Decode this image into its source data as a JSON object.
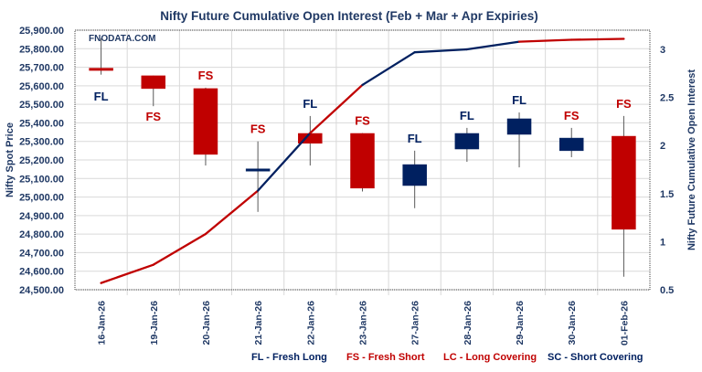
{
  "chart_data": {
    "type": "candlestick+line",
    "title": "Nifty Future Cumulative Open Interest (Feb + Mar + Apr Expiries)",
    "watermark": "FNODATA.COM",
    "ylabel_left": "Nifty Spot Price",
    "ylabel_right": "Nifty Future Cumulative Open Interest",
    "ylim_left": [
      24500,
      25900
    ],
    "ylim_right": [
      0.5,
      3.2
    ],
    "yticks_left": [
      "24,500.00",
      "24,600.00",
      "24,700.00",
      "24,800.00",
      "24,900.00",
      "25,000.00",
      "25,100.00",
      "25,200.00",
      "25,300.00",
      "25,400.00",
      "25,500.00",
      "25,600.00",
      "25,700.00",
      "25,800.00",
      "25,900.00"
    ],
    "yticks_right": [
      "0.5",
      "1",
      "1.5",
      "2",
      "2.5",
      "3"
    ],
    "grid": true,
    "categories": [
      "16-Jan-26",
      "19-Jan-26",
      "20-Jan-26",
      "21-Jan-26",
      "22-Jan-26",
      "23-Jan-26",
      "27-Jan-26",
      "28-Jan-26",
      "29-Jan-26",
      "30-Jan-26",
      "01-Feb-26"
    ],
    "candles": [
      {
        "open": 25695,
        "high": 25855,
        "low": 25660,
        "close": 25693
      },
      {
        "open": 25654,
        "high": 25655,
        "low": 25490,
        "close": 25585
      },
      {
        "open": 25585,
        "high": 25590,
        "low": 25170,
        "close": 25230
      },
      {
        "open": 25148,
        "high": 25300,
        "low": 24920,
        "close": 25152
      },
      {
        "open": 25343,
        "high": 25437,
        "low": 25170,
        "close": 25290
      },
      {
        "open": 25343,
        "high": 25345,
        "low": 25030,
        "close": 25048
      },
      {
        "open": 25062,
        "high": 25250,
        "low": 24940,
        "close": 25175
      },
      {
        "open": 25259,
        "high": 25373,
        "low": 25190,
        "close": 25343
      },
      {
        "open": 25338,
        "high": 25456,
        "low": 25160,
        "close": 25422
      },
      {
        "open": 25250,
        "high": 25373,
        "low": 25215,
        "close": 25318
      },
      {
        "open": 25328,
        "high": 25437,
        "low": 24570,
        "close": 24826
      }
    ],
    "signals": [
      {
        "label": "FL",
        "position": "below"
      },
      {
        "label": "FS",
        "position": "below"
      },
      {
        "label": "FS",
        "position": "above"
      },
      {
        "label": "FS",
        "position": "above"
      },
      {
        "label": "FL",
        "position": "above"
      },
      {
        "label": "FS",
        "position": "above"
      },
      {
        "label": "FL",
        "position": "above"
      },
      {
        "label": "FL",
        "position": "above"
      },
      {
        "label": "FL",
        "position": "above"
      },
      {
        "label": "FS",
        "position": "above"
      },
      {
        "label": "FS",
        "position": "above"
      }
    ],
    "open_interest": [
      0.57,
      0.76,
      1.08,
      1.53,
      2.13,
      2.63,
      2.97,
      3.0,
      3.08,
      3.1,
      3.11
    ],
    "oi_segment_colors": [
      "red",
      "red",
      "red",
      "blue",
      "red",
      "blue",
      "blue",
      "blue",
      "red",
      "red"
    ],
    "colors": {
      "red": "#c00000",
      "blue": "#002060",
      "wick": "#595959",
      "text": "#1f3864",
      "grid": "#d9d9d9"
    },
    "legend": [
      {
        "text": "FL - Fresh Long",
        "color": "blue"
      },
      {
        "text": "FS - Fresh Short",
        "color": "red"
      },
      {
        "text": "LC - Long Covering",
        "color": "red"
      },
      {
        "text": "SC - Short Covering",
        "color": "blue"
      }
    ]
  }
}
